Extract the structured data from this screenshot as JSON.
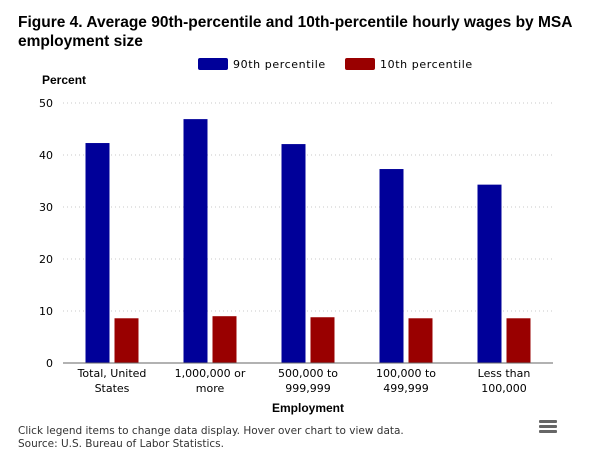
{
  "chart_data": {
    "type": "bar",
    "title": "Figure 4. Average 90th-percentile and 10th-percentile hourly wages by MSA employment size",
    "ylabel": "Percent",
    "xlabel": "Employment",
    "ylim": [
      0,
      50
    ],
    "yticks": [
      0,
      10,
      20,
      30,
      40,
      50
    ],
    "grid": true,
    "legend_position": "top-center",
    "categories": [
      [
        "Total, United",
        "States"
      ],
      [
        "1,000,000 or",
        "more"
      ],
      [
        "500,000 to",
        "999,999"
      ],
      [
        "100,000 to",
        "499,999"
      ],
      [
        "Less than",
        "100,000"
      ]
    ],
    "series": [
      {
        "name": "90th percentile",
        "color": "#000099",
        "values": [
          42.3,
          46.9,
          42.1,
          37.3,
          34.3
        ]
      },
      {
        "name": "10th percentile",
        "color": "#990000",
        "values": [
          8.6,
          9.0,
          8.8,
          8.6,
          8.6
        ]
      }
    ]
  },
  "footer": {
    "note": "Click legend items to change data display. Hover over chart to view data.",
    "source": "Source: U.S. Bureau of Labor Statistics."
  },
  "icons": {
    "menu": "hamburger-menu-icon"
  }
}
